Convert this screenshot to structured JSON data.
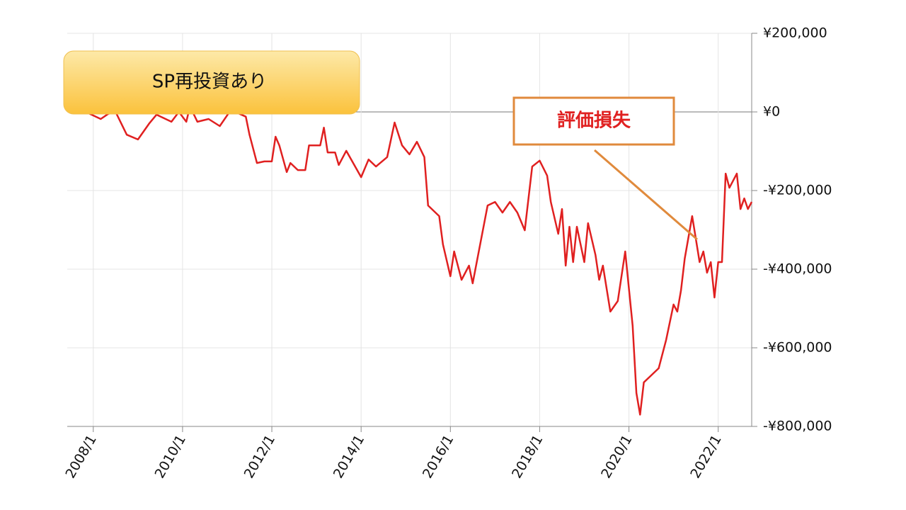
{
  "chart_data": {
    "type": "line",
    "x": [
      "2007/11",
      "2008/3",
      "2008/5",
      "2008/7",
      "2008/10",
      "2009/1",
      "2009/4",
      "2009/6",
      "2009/10",
      "2009/12",
      "2010/2",
      "2010/3",
      "2010/5",
      "2010/8",
      "2010/11",
      "2011/2",
      "2011/6",
      "2011/7",
      "2011/9",
      "2011/11",
      "2012/1",
      "2012/2",
      "2012/3",
      "2012/5",
      "2012/6",
      "2012/8",
      "2012/10",
      "2012/11",
      "2013/2",
      "2013/3",
      "2013/4",
      "2013/6",
      "2013/7",
      "2013/9",
      "2014/1",
      "2014/3",
      "2014/5",
      "2014/8",
      "2014/10",
      "2014/12",
      "2015/2",
      "2015/4",
      "2015/6",
      "2015/7",
      "2015/10",
      "2015/11",
      "2016/1",
      "2016/2",
      "2016/4",
      "2016/6",
      "2016/7",
      "2016/11",
      "2017/1",
      "2017/3",
      "2017/5",
      "2017/7",
      "2017/9",
      "2017/11",
      "2018/1",
      "2018/3",
      "2018/4",
      "2018/6",
      "2018/7",
      "2018/8",
      "2018/9",
      "2018/10",
      "2018/11",
      "2019/1",
      "2019/2",
      "2019/4",
      "2019/5",
      "2019/6",
      "2019/8",
      "2019/10",
      "2019/12",
      "2020/2",
      "2020/3",
      "2020/4",
      "2020/5",
      "2020/7",
      "2020/9",
      "2020/11",
      "2021/1",
      "2021/2",
      "2021/3",
      "2021/4",
      "2021/6",
      "2021/8",
      "2021/9",
      "2021/10",
      "2021/11",
      "2021/12",
      "2022/1",
      "2022/2",
      "2022/3",
      "2022/4",
      "2022/6",
      "2022/7",
      "2022/8",
      "2022/9",
      "2022/10"
    ],
    "series": [
      {
        "color": "#e02020",
        "values": [
          0,
          -18000,
          -5000,
          0,
          -58000,
          -70000,
          -30000,
          -7000,
          -25000,
          0,
          -25000,
          14000,
          -25000,
          -18000,
          -36000,
          5000,
          -12000,
          -58000,
          -130000,
          -126000,
          -126000,
          -63000,
          -85000,
          -153000,
          -130000,
          -148000,
          -148000,
          -85000,
          -85000,
          -40000,
          -103000,
          -103000,
          -135000,
          -99000,
          -166000,
          -121000,
          -139000,
          -115000,
          -27000,
          -85000,
          -108000,
          -76000,
          -115000,
          -238000,
          -265000,
          -337000,
          -418000,
          -355000,
          -427000,
          -391000,
          -436000,
          -238000,
          -229000,
          -256000,
          -229000,
          -256000,
          -301000,
          -139000,
          -124000,
          -162000,
          -229000,
          -310000,
          -247000,
          -391000,
          -292000,
          -382000,
          -292000,
          -382000,
          -283000,
          -364000,
          -427000,
          -391000,
          -508000,
          -481000,
          -355000,
          -544000,
          -715000,
          -770000,
          -688000,
          -670000,
          -652000,
          -580000,
          -490000,
          -508000,
          -454000,
          -373000,
          -265000,
          -382000,
          -355000,
          -409000,
          -382000,
          -472000,
          -382000,
          -382000,
          -157000,
          -193000,
          -157000,
          -247000,
          -220000,
          -247000,
          -229000
        ]
      }
    ],
    "xlim": [
      "2007/6",
      "2022/10"
    ],
    "xticks": [
      "2008/1",
      "2010/1",
      "2012/1",
      "2014/1",
      "2016/1",
      "2018/1",
      "2020/1",
      "2022/1"
    ],
    "ylim": [
      -800000,
      200000
    ],
    "yticks": [
      {
        "value": 200000,
        "label": "¥200,000"
      },
      {
        "value": 0,
        "label": "¥0"
      },
      {
        "value": -200000,
        "label": "-¥200,000"
      },
      {
        "value": -400000,
        "label": "-¥400,000"
      },
      {
        "value": -600000,
        "label": "-¥600,000"
      },
      {
        "value": -800000,
        "label": "-¥800,000"
      }
    ],
    "grid": true,
    "annotations": [
      "SP再投資あり",
      "評価損失"
    ]
  }
}
